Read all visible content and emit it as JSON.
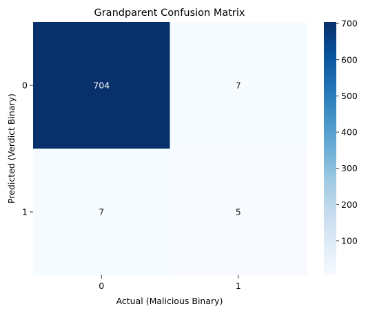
{
  "chart_data": {
    "type": "heatmap",
    "title": "Grandparent Confusion Matrix",
    "xlabel": "Actual (Malicious Binary)",
    "ylabel": "Predicted (Verdict Binary)",
    "x_categories": [
      "0",
      "1"
    ],
    "y_categories": [
      "0",
      "1"
    ],
    "values": [
      [
        704,
        7
      ],
      [
        7,
        5
      ]
    ],
    "colormap": "Blues",
    "color_range": [
      5,
      704
    ],
    "colorbar_ticks": [
      100,
      200,
      300,
      400,
      500,
      600,
      700
    ],
    "colors": {
      "low": "#f7fbff",
      "high": "#08306b"
    }
  }
}
